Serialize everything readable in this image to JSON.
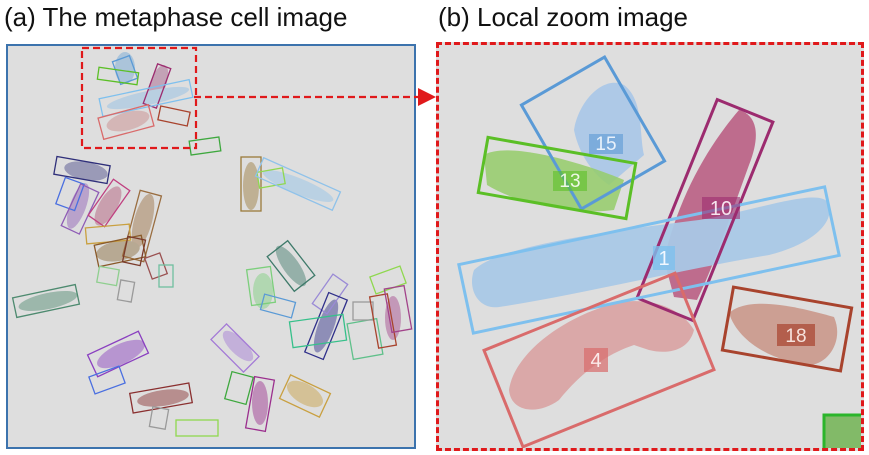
{
  "captions": {
    "left": "(a) The metaphase cell image",
    "right": "(b) Local zoom image"
  },
  "colors": {
    "left_panel_border": "#3c73ad",
    "zoom_highlight": "#e0191b",
    "background": "#dedede",
    "id_1": "#7ec0ee",
    "id_4": "#d96b6b",
    "id_10": "#9c2b6f",
    "id_13": "#5bbf26",
    "id_15": "#5a9ad6",
    "id_18": "#a8432d"
  },
  "zoom_labels": {
    "id_1": "1",
    "id_4": "4",
    "id_10": "10",
    "id_13": "13",
    "id_15": "15",
    "id_18": "18"
  }
}
